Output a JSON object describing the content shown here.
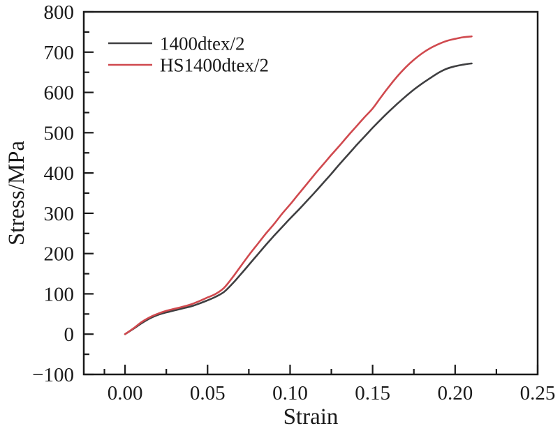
{
  "chart_data": {
    "type": "line",
    "title": "",
    "xlabel": "Strain",
    "ylabel": "Stress/MPa",
    "xlim": [
      -0.025,
      0.25
    ],
    "ylim": [
      -100,
      800
    ],
    "grid": false,
    "legend_position": "top-left",
    "axis_color": "#1a1a1a",
    "x_major_ticks": [
      0.0,
      0.05,
      0.1,
      0.15,
      0.2,
      0.25
    ],
    "x_tick_labels": [
      "0.00",
      "0.05",
      "0.10",
      "0.15",
      "0.20",
      "0.25"
    ],
    "x_minor_ticks": [
      -0.0125,
      0.025,
      0.075,
      0.125,
      0.175,
      0.225
    ],
    "y_major_ticks": [
      -100,
      0,
      100,
      200,
      300,
      400,
      500,
      600,
      700,
      800
    ],
    "y_tick_labels": [
      "−100",
      "0",
      "100",
      "200",
      "300",
      "400",
      "500",
      "600",
      "700",
      "800"
    ],
    "y_minor_ticks": [
      -50,
      50,
      150,
      250,
      350,
      450,
      550,
      650,
      750
    ],
    "x": [
      0.0,
      0.005,
      0.01,
      0.015,
      0.02,
      0.025,
      0.03,
      0.035,
      0.04,
      0.045,
      0.05,
      0.055,
      0.06,
      0.065,
      0.07,
      0.075,
      0.08,
      0.085,
      0.09,
      0.095,
      0.1,
      0.105,
      0.11,
      0.115,
      0.12,
      0.125,
      0.13,
      0.135,
      0.14,
      0.145,
      0.15,
      0.155,
      0.16,
      0.165,
      0.17,
      0.175,
      0.18,
      0.185,
      0.19,
      0.195,
      0.2,
      0.205,
      0.21
    ],
    "series": [
      {
        "name": "1400dtex/2",
        "color": "#3f3f41",
        "values": [
          0,
          13,
          27,
          39,
          48,
          54,
          59,
          64,
          69,
          76,
          84,
          93,
          105,
          125,
          148,
          172,
          196,
          220,
          243,
          265,
          287,
          308,
          330,
          352,
          375,
          398,
          422,
          445,
          468,
          490,
          512,
          533,
          553,
          572,
          590,
          607,
          622,
          636,
          649,
          659,
          665,
          669,
          672
        ]
      },
      {
        "name": "HS1400dtex/2",
        "color": "#d0494e",
        "values": [
          0,
          14,
          30,
          42,
          51,
          58,
          63,
          68,
          74,
          82,
          91,
          100,
          115,
          140,
          168,
          196,
          222,
          248,
          272,
          298,
          322,
          347,
          372,
          397,
          421,
          445,
          468,
          492,
          515,
          538,
          560,
          588,
          615,
          640,
          662,
          681,
          697,
          710,
          720,
          728,
          733,
          737,
          739
        ]
      }
    ]
  }
}
